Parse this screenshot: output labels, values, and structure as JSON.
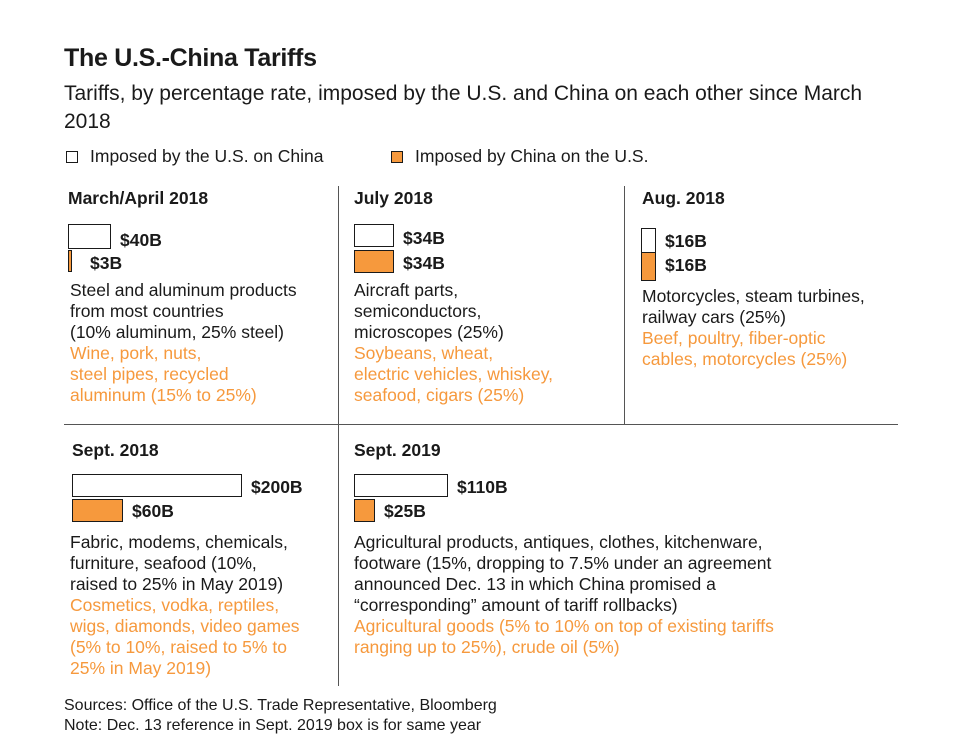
{
  "title": "The U.S.-China Tariffs",
  "subtitle": "Tariffs, by percentage rate, imposed by the U.S. and China on each other since March 2018",
  "legend": {
    "us": "Imposed by the U.S. on China",
    "cn": "Imposed by China on the U.S."
  },
  "colors": {
    "us": "#ffffff",
    "cn": "#f6993d",
    "text": "#1a1a1a"
  },
  "chart_data": {
    "type": "bar",
    "title": "The U.S.-China Tariffs",
    "unit": "billions of USD of goods",
    "series": [
      {
        "name": "Imposed by the U.S. on China",
        "values": [
          40,
          34,
          16,
          200,
          110
        ]
      },
      {
        "name": "Imposed by China on the U.S.",
        "values": [
          3,
          34,
          16,
          60,
          25
        ]
      }
    ],
    "categories": [
      "March/April 2018",
      "July 2018",
      "Aug. 2018",
      "Sept. 2018",
      "Sept. 2019"
    ],
    "panels": [
      {
        "title": "March/April 2018",
        "us": {
          "value": 40,
          "label": "$40B"
        },
        "cn": {
          "value": 3,
          "label": "$3B"
        },
        "us_lines": [
          "Steel and aluminum products",
          "from most countries",
          "(10% aluminum, 25% steel)"
        ],
        "cn_lines": [
          "Wine, pork, nuts,",
          "steel pipes, recycled",
          "aluminum (15% to 25%)"
        ]
      },
      {
        "title": "July 2018",
        "us": {
          "value": 34,
          "label": "$34B"
        },
        "cn": {
          "value": 34,
          "label": "$34B"
        },
        "us_lines": [
          "Aircraft parts,",
          "semiconductors,",
          "microscopes (25%)"
        ],
        "cn_lines": [
          "Soybeans, wheat,",
          "electric vehicles, whiskey,",
          "seafood, cigars (25%)"
        ]
      },
      {
        "title": "Aug. 2018",
        "us": {
          "value": 16,
          "label": "$16B"
        },
        "cn": {
          "value": 16,
          "label": "$16B"
        },
        "us_lines": [
          "Motorcycles, steam turbines,",
          "railway cars (25%)"
        ],
        "cn_lines": [
          "Beef, poultry, fiber-optic",
          "cables, motorcycles (25%)"
        ]
      },
      {
        "title": "Sept. 2018",
        "us": {
          "value": 200,
          "label": "$200B"
        },
        "cn": {
          "value": 60,
          "label": "$60B"
        },
        "us_lines": [
          "Fabric, modems, chemicals,",
          "furniture, seafood (10%,",
          "raised to 25% in May 2019)"
        ],
        "cn_lines": [
          "Cosmetics, vodka, reptiles,",
          "wigs, diamonds, video games",
          "(5% to 10%, raised to 5% to",
          "25% in May 2019)"
        ]
      },
      {
        "title": "Sept. 2019",
        "us": {
          "value": 110,
          "label": "$110B"
        },
        "cn": {
          "value": 25,
          "label": "$25B"
        },
        "us_lines": [
          "Agricultural products, antiques, clothes, kitchenware,",
          "footware (15%, dropping to 7.5% under an agreement",
          "announced Dec. 13 in which China promised a",
          "“corresponding” amount of tariff rollbacks)"
        ],
        "cn_lines": [
          "Agricultural goods (5% to 10% on top of existing tariffs",
          "ranging up to 25%), crude oil (5%)"
        ]
      }
    ]
  },
  "footer": {
    "sources": "Sources: Office of the U.S. Trade Representative, Bloomberg",
    "note": "Note: Dec. 13 reference in Sept. 2019 box is for same year"
  }
}
